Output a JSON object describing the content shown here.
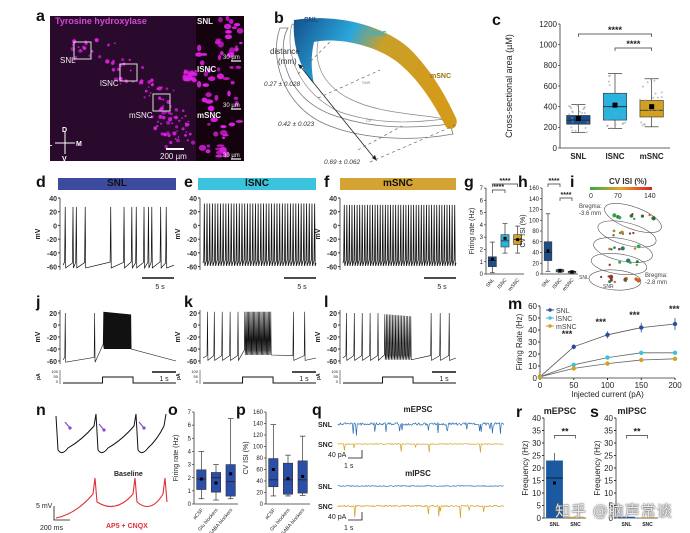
{
  "figure": {
    "panel_labels": [
      "a",
      "b",
      "c",
      "d",
      "e",
      "f",
      "g",
      "h",
      "i",
      "j",
      "k",
      "l",
      "m",
      "n",
      "o",
      "p",
      "q",
      "r",
      "s"
    ],
    "watermark": "知乎 @脑声常谈"
  },
  "panel_a": {
    "title": "Tyrosine hydroxylase",
    "regions": [
      "SNL",
      "lSNC",
      "mSNC"
    ],
    "inset_labels": [
      "SNL",
      "lSNC",
      "mSNC"
    ],
    "inset_scale": "30 µm",
    "scale_bar": "200 µm",
    "compass": {
      "d": "D",
      "v": "V",
      "l": "L",
      "m": "M"
    },
    "colors": {
      "bg": "#2a0a2c",
      "signal": "#e21fe8"
    }
  },
  "panel_b": {
    "regions": [
      "SNL",
      "lSNC",
      "mSNC"
    ],
    "sub_labels": [
      "SNR",
      "CP"
    ],
    "axis_label": "distance (mm)",
    "distance_title_1": "distance",
    "distance_title_2": "(mm)",
    "distances": [
      "0.27 ± 0.028",
      "0.42 ± 0.023",
      "0.69 ± 0.062"
    ],
    "colors": {
      "SNL": "#1b4f8a",
      "lSNC": "#2bb3e0",
      "mSNC": "#d4a020"
    }
  },
  "panel_d": {
    "header": "SNL",
    "ylabel": "mV",
    "yticks": [
      "40",
      "20",
      "0",
      "-20",
      "-40",
      "-60"
    ],
    "scale": "5 s",
    "color": "#3c4aa0"
  },
  "panel_e": {
    "header": "lSNC",
    "ylabel": "mV",
    "yticks": [
      "40",
      "20",
      "0",
      "-20",
      "-40",
      "-60"
    ],
    "scale": "5 s",
    "color": "#3bc3dd"
  },
  "panel_f": {
    "header": "mSNC",
    "ylabel": "mV",
    "yticks": [
      "40",
      "20",
      "0",
      "-20",
      "-40",
      "-60"
    ],
    "scale": "5 s",
    "color": "#d4a334"
  },
  "panel_j": {
    "ylabel": "mV",
    "yticks": [
      "20",
      "0",
      "-20",
      "-40",
      "-60"
    ],
    "pa_label": "pA",
    "pa_ticks": [
      "100",
      "50",
      "0"
    ],
    "scale": "1 s"
  },
  "panel_k": {
    "ylabel": "mV",
    "yticks": [
      "20",
      "0",
      "-20",
      "-40",
      "-60"
    ],
    "pa_label": "pA",
    "pa_ticks": [
      "100",
      "50",
      "0"
    ],
    "scale": "1 s"
  },
  "panel_l": {
    "ylabel": "mV",
    "yticks": [
      "20",
      "0",
      "-20",
      "-40",
      "-60"
    ],
    "pa_label": "pA",
    "pa_ticks": [
      "100",
      "50",
      "0"
    ],
    "scale": "1 s"
  },
  "panel_i": {
    "title": "CV ISI (%)",
    "scale_ticks": [
      "0",
      "70",
      "140"
    ],
    "bregma_top": "Bregma: -3.6 mm",
    "bregma_top_1": "Bregma:",
    "bregma_top_2": "-3.6 mm",
    "bregma_bottom_1": "Bregma:",
    "bregma_bottom_2": "-2.8 mm",
    "labels": [
      "SNL",
      "SNR",
      "SNC"
    ]
  },
  "panel_n": {
    "baseline_label": "Baseline",
    "treatment_label": "AP5 + CNQX",
    "scale_v": "5 mV",
    "scale_t": "200 ms"
  },
  "panel_q": {
    "mepsc_title": "mEPSC",
    "mipsc_title": "mIPSC",
    "rows": [
      "SNL",
      "SNC",
      "SNL",
      "SNC"
    ],
    "scale_pa": "40 pA",
    "scale_t": "1 s"
  },
  "chart_data": [
    {
      "id": "c",
      "type": "box",
      "title": "",
      "ylabel": "Cross-sectional area (µM)",
      "ylim": [
        0,
        1200
      ],
      "yticks": [
        "0",
        "200",
        "400",
        "600",
        "800",
        "1000",
        "1200"
      ],
      "categories": [
        "SNL",
        "lSNC",
        "mSNC"
      ],
      "colors": [
        "#1b4f8a",
        "#2bb3e0",
        "#d4a020"
      ],
      "series": [
        {
          "name": "SNL",
          "whisker_low": 150,
          "q1": 230,
          "median": 270,
          "q3": 315,
          "whisker_high": 420,
          "mean": 285
        },
        {
          "name": "lSNC",
          "whisker_low": 190,
          "q1": 270,
          "median": 400,
          "q3": 530,
          "whisker_high": 720,
          "mean": 415
        },
        {
          "name": "mSNC",
          "whisker_low": 205,
          "q1": 300,
          "median": 365,
          "q3": 460,
          "whisker_high": 670,
          "mean": 400
        }
      ],
      "annotations": [
        {
          "from": "SNL",
          "to": "mSNC",
          "text": "****"
        },
        {
          "from": "lSNC",
          "to": "mSNC",
          "text": "****"
        }
      ]
    },
    {
      "id": "g",
      "type": "box",
      "ylabel": "Firing rate (Hz)",
      "ylim": [
        0,
        7
      ],
      "yticks": [
        "0",
        "1",
        "2",
        "3",
        "4",
        "5",
        "6",
        "7"
      ],
      "categories": [
        "SNL",
        "lSNC",
        "mSNC"
      ],
      "colors": [
        "#1b4f8a",
        "#2bb3e0",
        "#d4a020"
      ],
      "series": [
        {
          "name": "SNL",
          "whisker_low": 0.1,
          "q1": 0.6,
          "median": 1.1,
          "q3": 1.4,
          "whisker_high": 2.6,
          "mean": 1.2
        },
        {
          "name": "lSNC",
          "whisker_low": 1.7,
          "q1": 2.2,
          "median": 2.7,
          "q3": 3.2,
          "whisker_high": 4.1,
          "mean": 2.9
        },
        {
          "name": "mSNC",
          "whisker_low": 1.7,
          "q1": 2.4,
          "median": 2.8,
          "q3": 3.2,
          "whisker_high": 3.9,
          "mean": 2.8
        }
      ],
      "annotations": [
        {
          "from": "SNL",
          "to": "mSNC",
          "text": "****"
        },
        {
          "from": "SNL",
          "to": "lSNC",
          "text": "****"
        }
      ]
    },
    {
      "id": "h",
      "type": "box",
      "ylabel": "CV ISI (%)",
      "ylim": [
        0,
        160
      ],
      "yticks": [
        "0",
        "20",
        "40",
        "60",
        "80",
        "100",
        "120",
        "140",
        "160"
      ],
      "categories": [
        "SNL",
        "lSNC",
        "mSNC"
      ],
      "colors": [
        "#1b4f8a",
        "#2bb3e0",
        "#d4a020"
      ],
      "series": [
        {
          "name": "SNL",
          "whisker_low": 5,
          "q1": 25,
          "median": 40,
          "q3": 60,
          "whisker_high": 112,
          "mean": 43
        },
        {
          "name": "lSNC",
          "whisker_low": 3,
          "q1": 4,
          "median": 6,
          "q3": 8,
          "whisker_high": 9,
          "mean": 6
        },
        {
          "name": "mSNC",
          "whisker_low": 1,
          "q1": 2,
          "median": 4,
          "q3": 5,
          "whisker_high": 6,
          "mean": 4
        }
      ],
      "annotations": [
        {
          "from": "SNL",
          "to": "lSNC",
          "text": "****"
        },
        {
          "from": "lSNC",
          "to": "mSNC",
          "text": "****"
        }
      ]
    },
    {
      "id": "m",
      "type": "line",
      "xlabel": "Injected current (pA)",
      "ylabel": "Firing Rate (Hz)",
      "xlim": [
        0,
        200
      ],
      "ylim": [
        0,
        60
      ],
      "xticks": [
        "0",
        "50",
        "100",
        "150",
        "200"
      ],
      "yticks": [
        "0",
        "10",
        "20",
        "30",
        "40",
        "50",
        "60"
      ],
      "x": [
        0,
        50,
        100,
        150,
        200
      ],
      "legend": "top-left",
      "series": [
        {
          "name": "SNL",
          "color": "#2a4f9e",
          "values": [
            1,
            26,
            36,
            42,
            45
          ],
          "errors": [
            1,
            2,
            3,
            4,
            5
          ]
        },
        {
          "name": "lSNC",
          "color": "#3bc3dd",
          "values": [
            1,
            11,
            17,
            21,
            21
          ],
          "errors": [
            0.5,
            1.5,
            1.5,
            1.5,
            1.5
          ]
        },
        {
          "name": "mSNC",
          "color": "#d4a020",
          "values": [
            1,
            8,
            12,
            15,
            16
          ],
          "errors": [
            0.5,
            1,
            1,
            1,
            1
          ]
        }
      ],
      "annotations": [
        {
          "x": 50,
          "text": "***"
        },
        {
          "x": 100,
          "text": "***"
        },
        {
          "x": 150,
          "text": "***"
        },
        {
          "x": 200,
          "text": "***"
        }
      ]
    },
    {
      "id": "o",
      "type": "box",
      "ylabel": "Firing rate (Hz)",
      "ylim": [
        0,
        7
      ],
      "yticks": [
        "0",
        "1",
        "2",
        "3",
        "4",
        "5",
        "6",
        "7"
      ],
      "categories": [
        "aCSF",
        "Glu blockers",
        "Glu + GABA blockers"
      ],
      "colors": [
        "#2b4ea8",
        "#2b4ea8",
        "#2b4ea8"
      ],
      "series": [
        {
          "name": "aCSF",
          "whisker_low": 0.4,
          "q1": 1.1,
          "median": 1.9,
          "q3": 2.6,
          "whisker_high": 4.0,
          "mean": 1.9
        },
        {
          "name": "Glu blockers",
          "whisker_low": 0.3,
          "q1": 0.9,
          "median": 2.0,
          "q3": 2.4,
          "whisker_high": 3.0,
          "mean": 1.6
        },
        {
          "name": "Glu + GABA blockers",
          "whisker_low": 0.4,
          "q1": 0.6,
          "median": 1.7,
          "q3": 3.0,
          "whisker_high": 6.5,
          "mean": 2.3
        }
      ]
    },
    {
      "id": "p",
      "type": "box",
      "ylabel": "CV ISI (%)",
      "ylim": [
        0,
        160
      ],
      "yticks": [
        "0",
        "20",
        "40",
        "60",
        "80",
        "100",
        "120",
        "140",
        "160"
      ],
      "categories": [
        "aCSF",
        "Glu blockers",
        "Glu + GABA blockers"
      ],
      "colors": [
        "#2b4ea8",
        "#2b4ea8",
        "#2b4ea8"
      ],
      "series": [
        {
          "name": "aCSF",
          "whisker_low": 14,
          "q1": 30,
          "median": 42,
          "q3": 79,
          "whisker_high": 138,
          "mean": 60
        },
        {
          "name": "Glu blockers",
          "whisker_low": 14,
          "q1": 17,
          "median": 42,
          "q3": 71,
          "whisker_high": 85,
          "mean": 44
        },
        {
          "name": "Glu + GABA blockers",
          "whisker_low": 15,
          "q1": 19,
          "median": 42,
          "q3": 75,
          "whisker_high": 118,
          "mean": 48
        }
      ]
    },
    {
      "id": "r",
      "type": "bar",
      "title": "mEPSC",
      "ylabel": "Frequency (Hz)",
      "ylim": [
        0,
        40
      ],
      "yticks": [
        "0",
        "5",
        "10",
        "15",
        "20",
        "25",
        "30",
        "35",
        "40"
      ],
      "categories": [
        "SNL",
        "SNC"
      ],
      "values": [
        23,
        0.5
      ],
      "error": [
        3,
        0.2
      ],
      "mean_marker": 14,
      "median_line": 16,
      "colors": [
        "#1b5aa0",
        "#d4a020"
      ],
      "annotations": [
        {
          "from": "SNL",
          "to": "SNC",
          "text": "**"
        }
      ]
    },
    {
      "id": "s",
      "type": "bar",
      "title": "mIPSC",
      "ylabel": "Frequency (Hz)",
      "ylim": [
        0,
        40
      ],
      "yticks": [
        "0",
        "5",
        "10",
        "15",
        "20",
        "25",
        "30",
        "35",
        "40"
      ],
      "categories": [
        "SNL",
        "SNC"
      ],
      "values": [
        0.5,
        0.3
      ],
      "colors": [
        "#1b5aa0",
        "#d4a020"
      ],
      "annotations": [
        {
          "from": "SNL",
          "to": "SNC",
          "text": "**"
        }
      ]
    }
  ]
}
